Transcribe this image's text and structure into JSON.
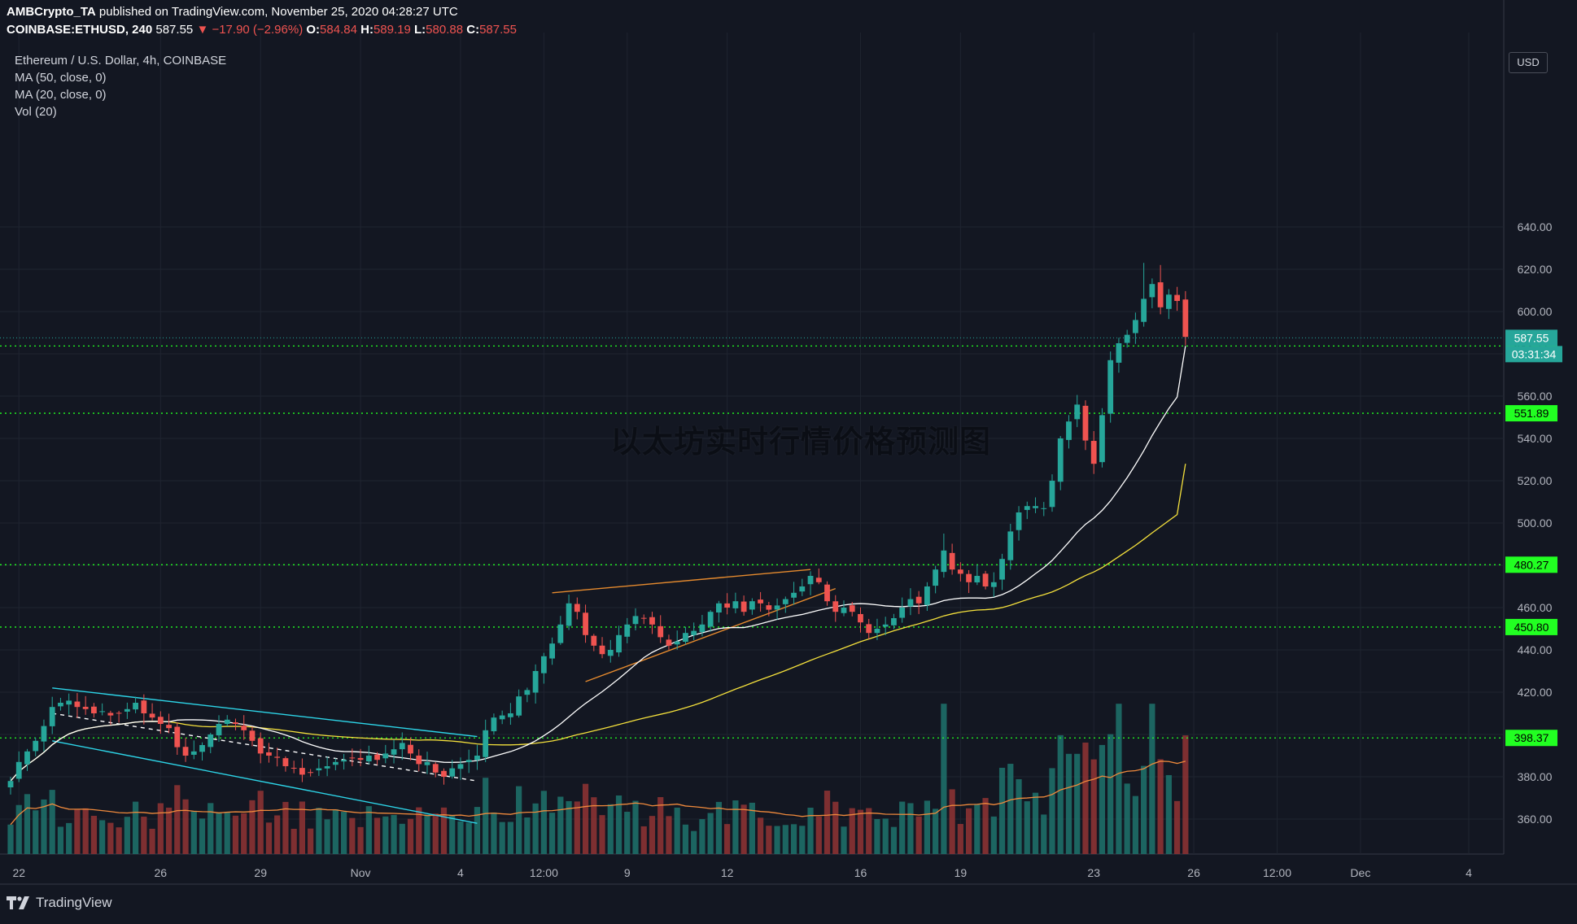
{
  "header": {
    "publisher": "AMBCrypto_TA",
    "published_text": "published on TradingView.com, November 25, 2020 04:28:27 UTC",
    "symbol": "COINBASE:ETHUSD, 240",
    "last": "587.55",
    "change": "▼ −17.90 (−2.96%)",
    "o_label": "O:",
    "o": "584.84",
    "h_label": "H:",
    "h": "589.19",
    "l_label": "L:",
    "l": "580.88",
    "c_label": "C:",
    "c": "587.55"
  },
  "legend": {
    "title": "Ethereum / U.S. Dollar, 4h, COINBASE",
    "ma50": "MA (50, close, 0)",
    "ma20": "MA (20, close, 0)",
    "vol": "Vol (20)"
  },
  "watermark": "以太坊实时行情价格预测图",
  "currency_button": "USD",
  "footer_brand": "TradingView",
  "colors": {
    "background": "#131722",
    "up": "#26a69a",
    "down": "#ef5350",
    "support": "#22ff22",
    "ma20": "#ffffff",
    "ma50": "#f5e13c",
    "channel": "#2dd5e8",
    "wedge": "#e58a2e",
    "vol_ma": "#f08a3c"
  },
  "chart_data": {
    "type": "candlestick",
    "title": "Ethereum / U.S. Dollar, 4h, COINBASE",
    "ylim": [
      346,
      650
    ],
    "y_ticks": [
      360,
      380,
      400,
      420,
      440,
      460,
      480,
      500,
      520,
      540,
      560,
      580,
      600,
      620,
      640
    ],
    "y_tick_labels": [
      "360.00",
      "380.00",
      "400.00",
      "420.00",
      "440.00",
      "460.00",
      "480.00",
      "500.00",
      "520.00",
      "540.00",
      "560.00",
      "580.00",
      "600.00",
      "620.00",
      "640.00"
    ],
    "x_tick_labels": [
      {
        "label": "22",
        "i": 1
      },
      {
        "label": "26",
        "i": 18
      },
      {
        "label": "29",
        "i": 30
      },
      {
        "label": "Nov",
        "i": 42
      },
      {
        "label": "4",
        "i": 54
      },
      {
        "label": "12:00",
        "i": 64
      },
      {
        "label": "9",
        "i": 74
      },
      {
        "label": "12",
        "i": 86
      },
      {
        "label": "16",
        "i": 102
      },
      {
        "label": "19",
        "i": 114
      },
      {
        "label": "23",
        "i": 130
      },
      {
        "label": "26",
        "i": 142
      },
      {
        "label": "12:00",
        "i": 152
      },
      {
        "label": "Dec",
        "i": 162
      },
      {
        "label": "4",
        "i": 175
      }
    ],
    "price_key": [
      [
        0,
        378
      ],
      [
        1,
        387
      ],
      [
        2,
        392
      ],
      [
        3,
        397
      ],
      [
        4,
        404
      ],
      [
        5,
        413
      ],
      [
        6,
        415
      ],
      [
        7,
        416
      ],
      [
        8,
        413
      ],
      [
        9,
        412
      ],
      [
        10,
        410
      ],
      [
        11,
        411
      ],
      [
        12,
        409
      ],
      [
        13,
        410
      ],
      [
        14,
        412
      ],
      [
        15,
        415
      ],
      [
        16,
        410
      ],
      [
        17,
        408
      ],
      [
        18,
        405
      ],
      [
        19,
        403
      ],
      [
        20,
        394
      ],
      [
        21,
        390
      ],
      [
        22,
        392
      ],
      [
        23,
        395
      ],
      [
        24,
        400
      ],
      [
        25,
        405
      ],
      [
        26,
        407
      ],
      [
        27,
        405
      ],
      [
        28,
        402
      ],
      [
        29,
        397
      ],
      [
        30,
        391
      ],
      [
        31,
        390
      ],
      [
        32,
        389
      ],
      [
        33,
        385
      ],
      [
        34,
        384
      ],
      [
        35,
        381
      ],
      [
        36,
        382
      ],
      [
        37,
        384
      ],
      [
        38,
        385
      ],
      [
        39,
        387
      ],
      [
        40,
        388
      ],
      [
        41,
        389
      ],
      [
        42,
        388
      ],
      [
        43,
        390
      ],
      [
        44,
        388
      ],
      [
        45,
        391
      ],
      [
        46,
        393
      ],
      [
        47,
        396
      ],
      [
        48,
        391
      ],
      [
        49,
        386
      ],
      [
        50,
        387
      ],
      [
        51,
        382
      ],
      [
        52,
        380
      ],
      [
        53,
        384
      ],
      [
        54,
        386
      ],
      [
        55,
        388
      ],
      [
        56,
        390
      ],
      [
        57,
        402
      ],
      [
        58,
        408
      ],
      [
        59,
        409
      ],
      [
        60,
        410
      ],
      [
        61,
        418
      ],
      [
        62,
        421
      ],
      [
        63,
        430
      ],
      [
        64,
        437
      ],
      [
        65,
        443
      ],
      [
        66,
        452
      ],
      [
        67,
        462
      ],
      [
        68,
        458
      ],
      [
        69,
        447
      ],
      [
        70,
        442
      ],
      [
        71,
        438
      ],
      [
        72,
        440
      ],
      [
        73,
        447
      ],
      [
        74,
        452
      ],
      [
        75,
        456
      ],
      [
        76,
        455
      ],
      [
        77,
        452
      ],
      [
        78,
        446
      ],
      [
        79,
        442
      ],
      [
        80,
        444
      ],
      [
        81,
        448
      ],
      [
        82,
        449
      ],
      [
        83,
        452
      ],
      [
        84,
        458
      ],
      [
        85,
        462
      ],
      [
        86,
        460
      ],
      [
        87,
        463
      ],
      [
        88,
        458
      ],
      [
        89,
        463
      ],
      [
        90,
        462
      ],
      [
        91,
        459
      ],
      [
        92,
        461
      ],
      [
        93,
        464
      ],
      [
        94,
        467
      ],
      [
        95,
        470
      ],
      [
        96,
        475
      ],
      [
        97,
        472
      ],
      [
        98,
        463
      ],
      [
        99,
        458
      ],
      [
        100,
        460
      ],
      [
        101,
        458
      ],
      [
        102,
        453
      ],
      [
        103,
        448
      ],
      [
        104,
        450
      ],
      [
        105,
        452
      ],
      [
        106,
        455
      ],
      [
        107,
        460
      ],
      [
        108,
        464
      ],
      [
        109,
        462
      ],
      [
        110,
        470
      ],
      [
        111,
        478
      ],
      [
        112,
        487
      ],
      [
        113,
        478
      ],
      [
        114,
        476
      ],
      [
        115,
        472
      ],
      [
        116,
        475
      ],
      [
        117,
        470
      ],
      [
        118,
        472
      ],
      [
        119,
        483
      ],
      [
        120,
        496
      ],
      [
        121,
        505
      ],
      [
        122,
        508
      ],
      [
        123,
        508
      ],
      [
        124,
        507
      ],
      [
        125,
        520
      ],
      [
        126,
        540
      ],
      [
        127,
        548
      ],
      [
        128,
        556
      ],
      [
        129,
        539
      ],
      [
        130,
        528
      ],
      [
        131,
        551
      ],
      [
        132,
        577
      ],
      [
        133,
        585
      ],
      [
        134,
        589
      ],
      [
        135,
        596
      ],
      [
        136,
        606
      ],
      [
        137,
        613
      ],
      [
        138,
        602
      ],
      [
        139,
        608
      ],
      [
        140,
        605
      ],
      [
        141,
        588
      ]
    ],
    "extra_spikes_high": [
      [
        57,
        407
      ],
      [
        112,
        495
      ],
      [
        136,
        623
      ],
      [
        138,
        622
      ]
    ],
    "volume_relative_peaks": "spikes near Nov 18 and Nov 22-23 reaching the 400-420 axis zone",
    "ma20_last": 583.71,
    "ma50_last": 528,
    "horizontal_levels": [
      {
        "value": 583.71,
        "label": "583.71"
      },
      {
        "value": 551.89,
        "label": "551.89"
      },
      {
        "value": 480.27,
        "label": "480.27"
      },
      {
        "value": 450.8,
        "label": "450.80"
      },
      {
        "value": 398.37,
        "label": "398.37"
      }
    ],
    "last_price": {
      "value": 587.55,
      "label": "587.55",
      "timer": "03:31:34"
    }
  }
}
